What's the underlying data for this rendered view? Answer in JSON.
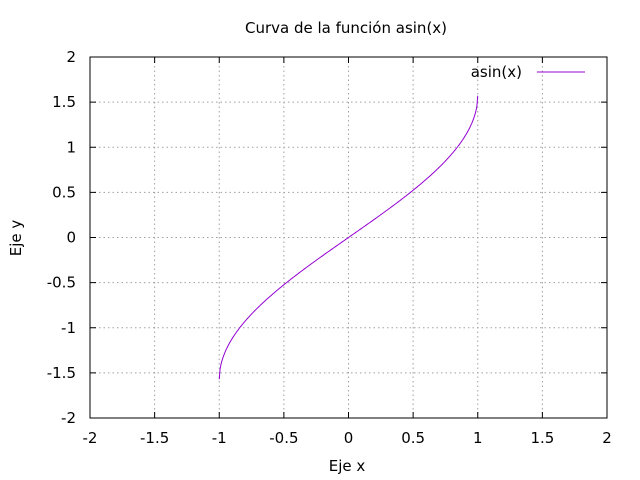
{
  "chart_data": {
    "type": "line",
    "title": "Curva de la función asin(x)",
    "xlabel": "Eje x",
    "ylabel": "Eje y",
    "xlim": [
      -2,
      2
    ],
    "ylim": [
      -2,
      2
    ],
    "xticks": [
      "-2",
      "-1.5",
      "-1",
      "-0.5",
      "0",
      "0.5",
      "1",
      "1.5",
      "2"
    ],
    "yticks": [
      "-2",
      "-1.5",
      "-1",
      "-0.5",
      "0",
      "0.5",
      "1",
      "1.5",
      "2"
    ],
    "grid": true,
    "legend_position": "top-right",
    "series": [
      {
        "name": "asin(x)",
        "color": "#9400d3",
        "function": "asin",
        "domain": [
          -1,
          1
        ]
      }
    ]
  }
}
